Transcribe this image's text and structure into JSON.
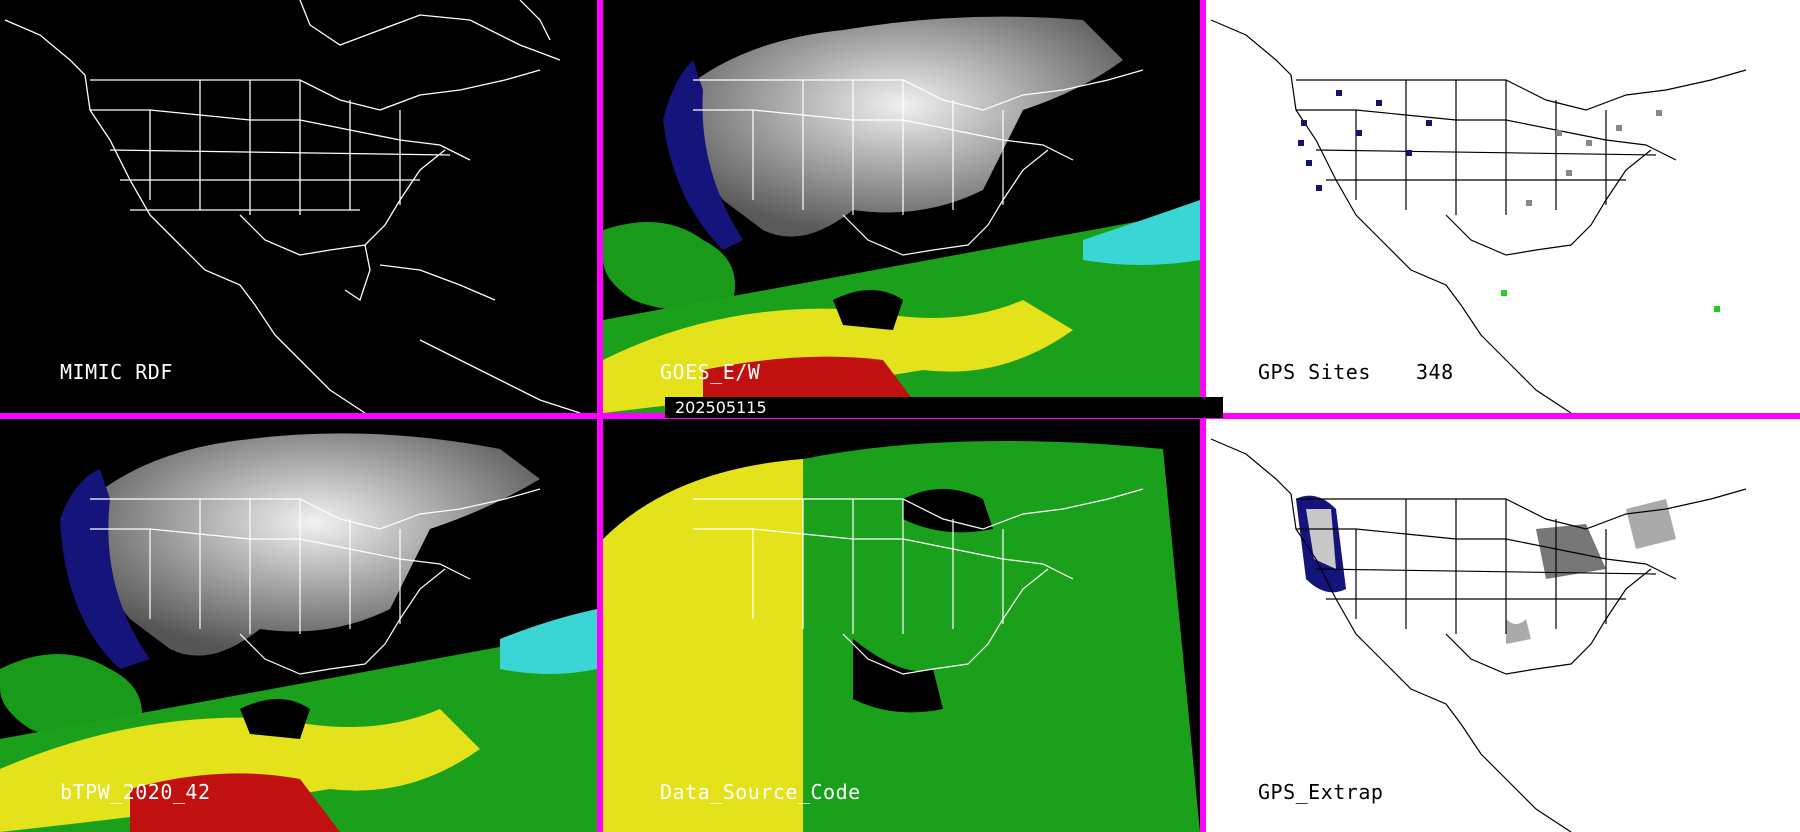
{
  "panels": [
    {
      "id": "mimic-rdf",
      "label": "MIMIC RDF",
      "theme": "dark"
    },
    {
      "id": "goes-ew",
      "label": "GOES_E/W",
      "theme": "dark"
    },
    {
      "id": "gps-sites",
      "label": "GPS Sites",
      "count": "348",
      "theme": "light"
    },
    {
      "id": "btpw",
      "label": "bTPW_2020_42",
      "theme": "dark"
    },
    {
      "id": "data-source-code",
      "label": "Data_Source_Code",
      "theme": "dark"
    },
    {
      "id": "gps-extrap",
      "label": "GPS_Extrap",
      "theme": "light"
    }
  ],
  "timestamp": "202505115",
  "colors": {
    "divider": "#ff00ff",
    "background_dark": "#000000",
    "background_light": "#ffffff"
  }
}
